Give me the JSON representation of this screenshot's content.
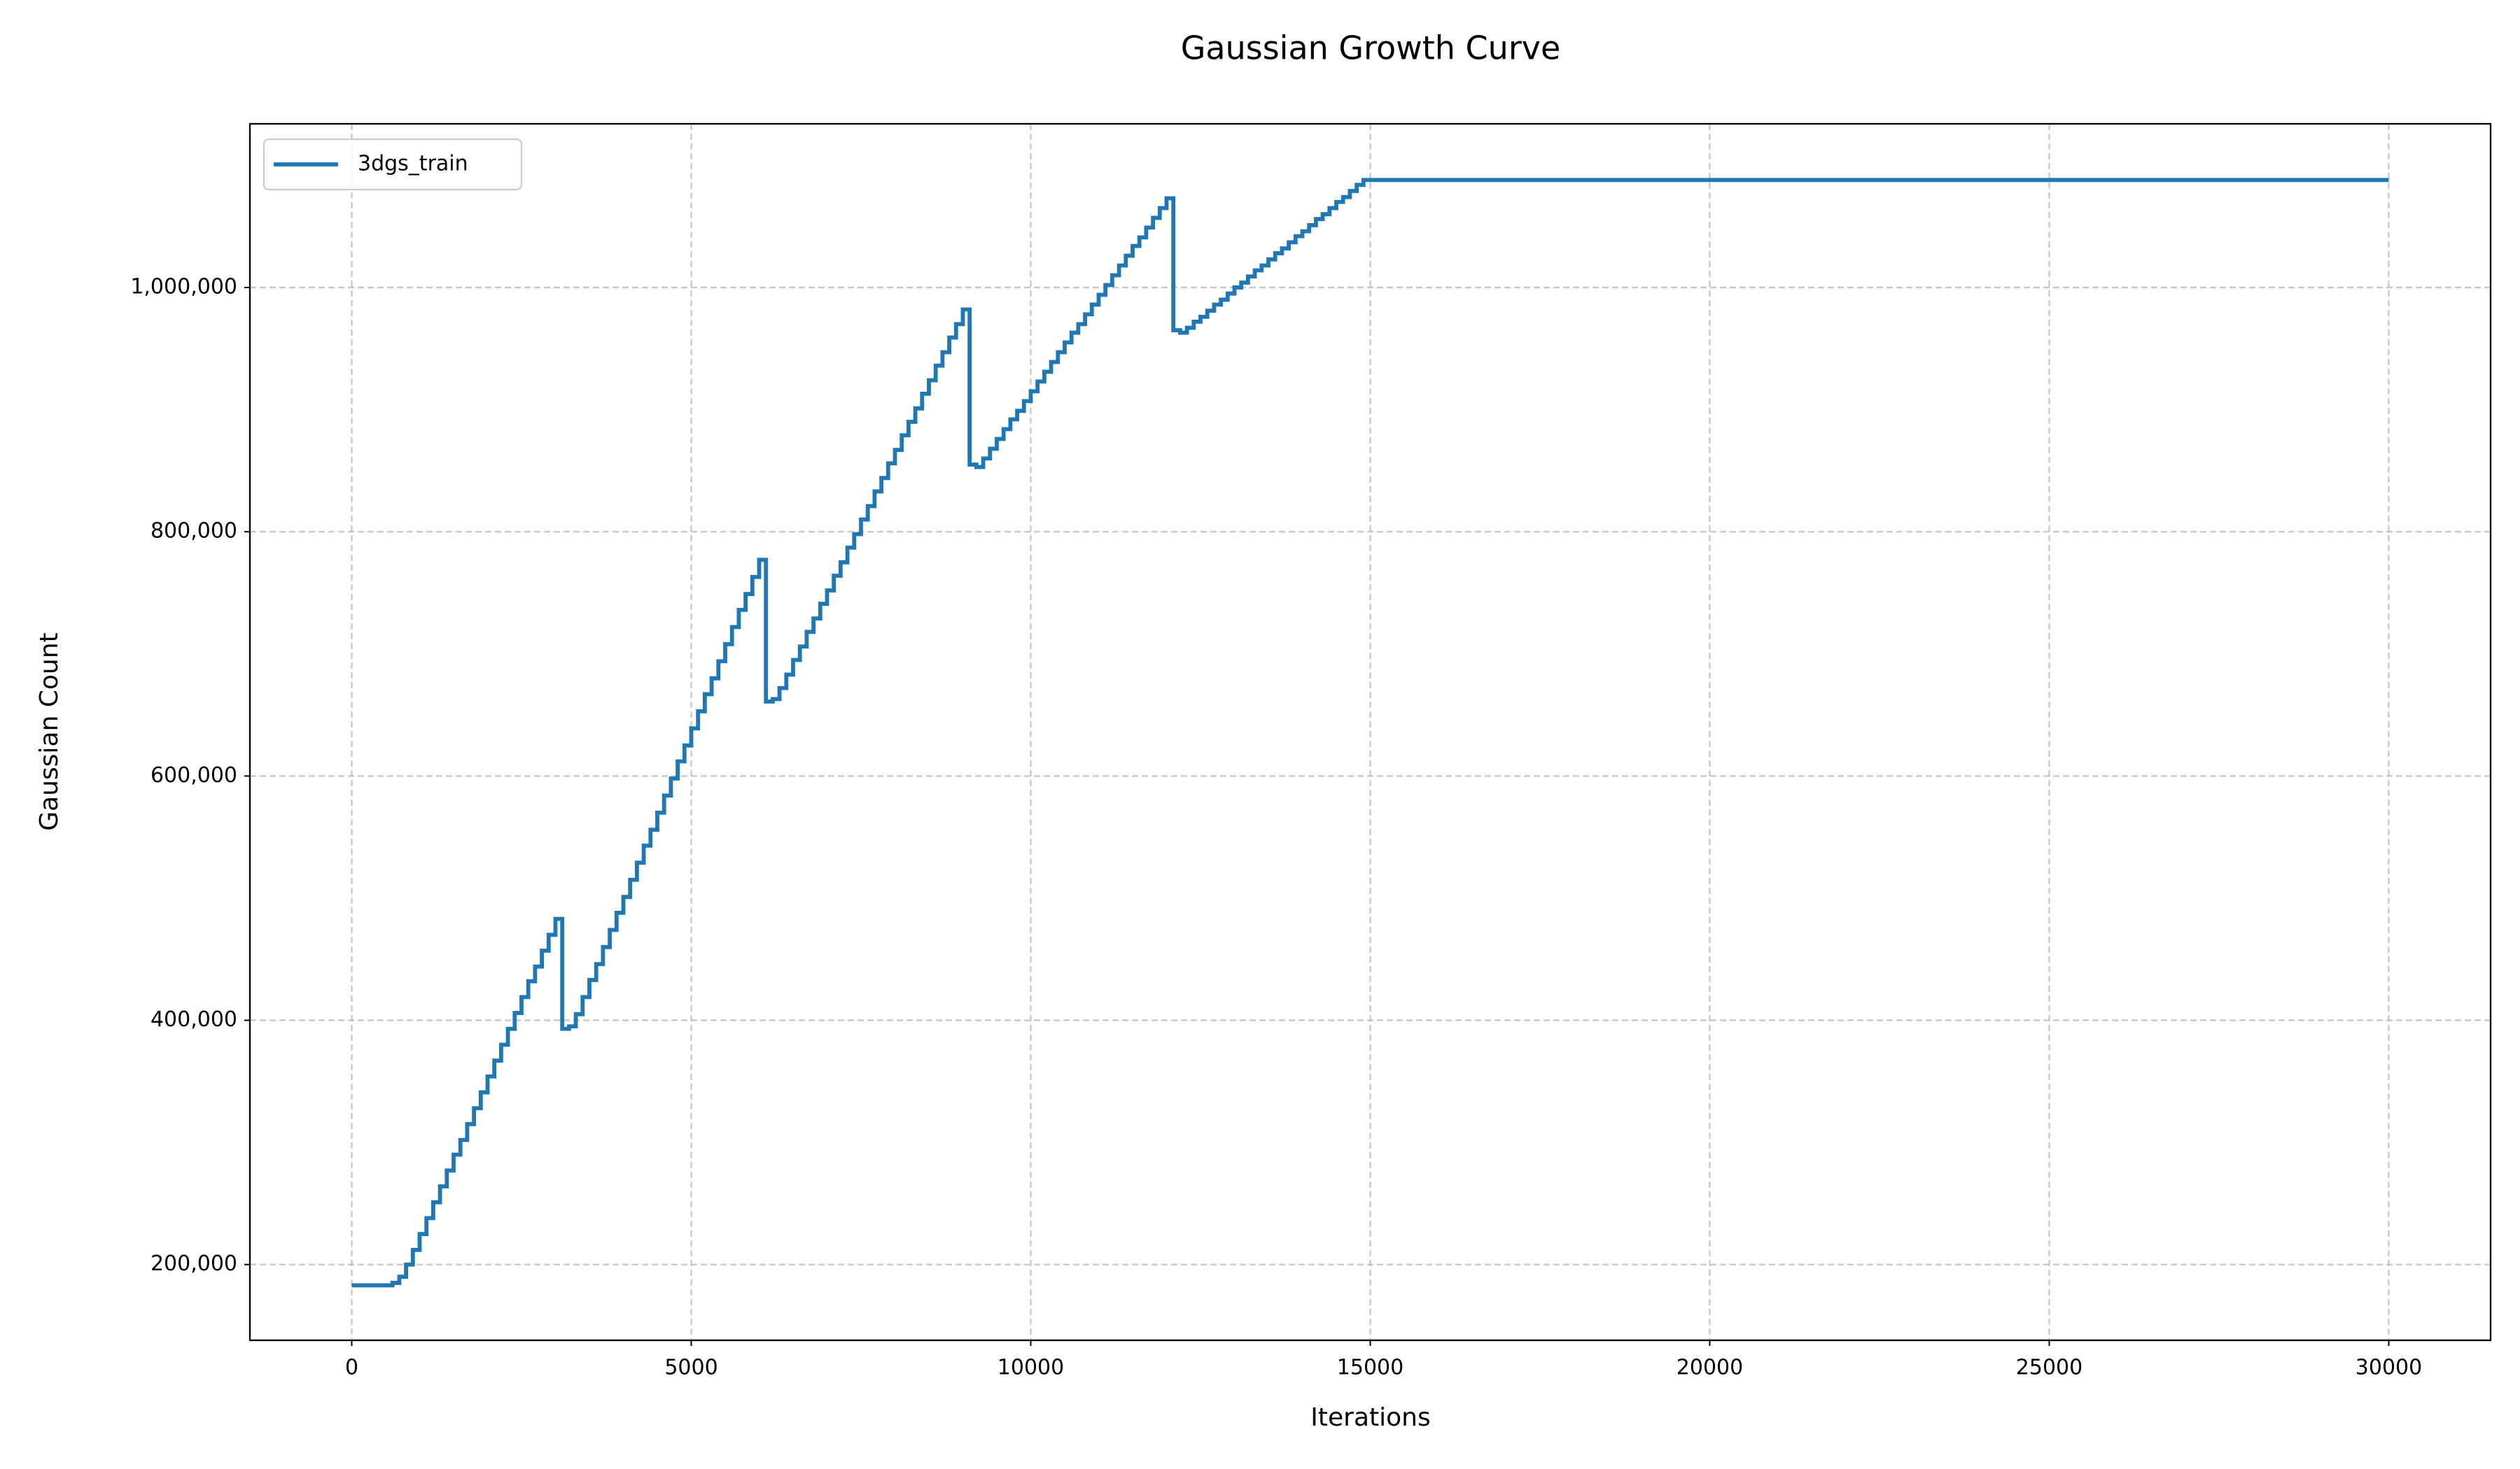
{
  "chart_data": {
    "type": "line",
    "step": "post",
    "title": "Gaussian Growth Curve",
    "xlabel": "Iterations",
    "ylabel": "Gaussian Count",
    "x": [
      0,
      600,
      700,
      800,
      900,
      1000,
      1100,
      1200,
      1300,
      1400,
      1500,
      1600,
      1700,
      1800,
      1900,
      2000,
      2100,
      2200,
      2300,
      2400,
      2500,
      2600,
      2700,
      2800,
      2900,
      3000,
      3100,
      3200,
      3300,
      3400,
      3500,
      3600,
      3700,
      3800,
      3900,
      4000,
      4100,
      4200,
      4300,
      4400,
      4500,
      4600,
      4700,
      4800,
      4900,
      5000,
      5100,
      5200,
      5300,
      5400,
      5500,
      5600,
      5700,
      5800,
      5900,
      6000,
      6100,
      6200,
      6300,
      6400,
      6500,
      6600,
      6700,
      6800,
      6900,
      7000,
      7100,
      7200,
      7300,
      7400,
      7500,
      7600,
      7700,
      7800,
      7900,
      8000,
      8100,
      8200,
      8300,
      8400,
      8500,
      8600,
      8700,
      8800,
      8900,
      9000,
      9100,
      9200,
      9300,
      9400,
      9500,
      9600,
      9700,
      9800,
      9900,
      10000,
      10100,
      10200,
      10300,
      10400,
      10500,
      10600,
      10700,
      10800,
      10900,
      11000,
      11100,
      11200,
      11300,
      11400,
      11500,
      11600,
      11700,
      11800,
      11900,
      12000,
      12100,
      12200,
      12300,
      12400,
      12500,
      12600,
      12700,
      12800,
      12900,
      13000,
      13100,
      13200,
      13300,
      13400,
      13500,
      13600,
      13700,
      13800,
      13900,
      14000,
      14100,
      14200,
      14300,
      14400,
      14500,
      14600,
      14700,
      14800,
      14900,
      30000
    ],
    "series": [
      {
        "name": "3dgs_train",
        "color": "#1f77b4",
        "values": [
          183000,
          185000,
          190000,
          200000,
          212000,
          225000,
          238000,
          251000,
          264000,
          277000,
          290000,
          302000,
          315000,
          328000,
          341000,
          354000,
          367000,
          380000,
          393000,
          406000,
          419000,
          432000,
          444000,
          457000,
          470000,
          483000,
          393000,
          395000,
          405000,
          419000,
          433000,
          446000,
          460000,
          474000,
          488000,
          501000,
          515000,
          529000,
          543000,
          556000,
          570000,
          584000,
          598000,
          612000,
          625000,
          639000,
          653000,
          667000,
          680000,
          694000,
          708000,
          722000,
          736000,
          749000,
          763000,
          777000,
          661000,
          663000,
          672000,
          683000,
          695000,
          706000,
          718000,
          729000,
          741000,
          752000,
          764000,
          775000,
          787000,
          798000,
          810000,
          821000,
          833000,
          844000,
          856000,
          867000,
          879000,
          890000,
          901000,
          913000,
          924000,
          936000,
          947000,
          959000,
          970000,
          982000,
          855000,
          853000,
          860000,
          868000,
          876000,
          884000,
          892000,
          899000,
          907000,
          915000,
          923000,
          931000,
          939000,
          947000,
          955000,
          963000,
          970000,
          978000,
          986000,
          994000,
          1002000,
          1010000,
          1018000,
          1026000,
          1034000,
          1041000,
          1049000,
          1057000,
          1065000,
          1073000,
          965000,
          963000,
          967000,
          972000,
          976000,
          981000,
          986000,
          990000,
          995000,
          1000000,
          1004000,
          1009000,
          1014000,
          1018000,
          1023000,
          1028000,
          1032000,
          1037000,
          1042000,
          1046000,
          1051000,
          1056000,
          1060000,
          1065000,
          1070000,
          1074000,
          1079000,
          1084000,
          1088000,
          1088000
        ]
      }
    ],
    "xlim": [
      -1500,
      31500
    ],
    "xticks": [
      0,
      5000,
      10000,
      15000,
      20000,
      25000,
      30000
    ],
    "ylim": [
      138000,
      1134000
    ],
    "yticks": [
      {
        "value": 200000,
        "label": "200,000"
      },
      {
        "value": 400000,
        "label": "400,000"
      },
      {
        "value": 600000,
        "label": "600,000"
      },
      {
        "value": 800000,
        "label": "800,000"
      },
      {
        "value": 1000000,
        "label": "1,000,000"
      }
    ],
    "grid": true,
    "legend": "upper left"
  }
}
